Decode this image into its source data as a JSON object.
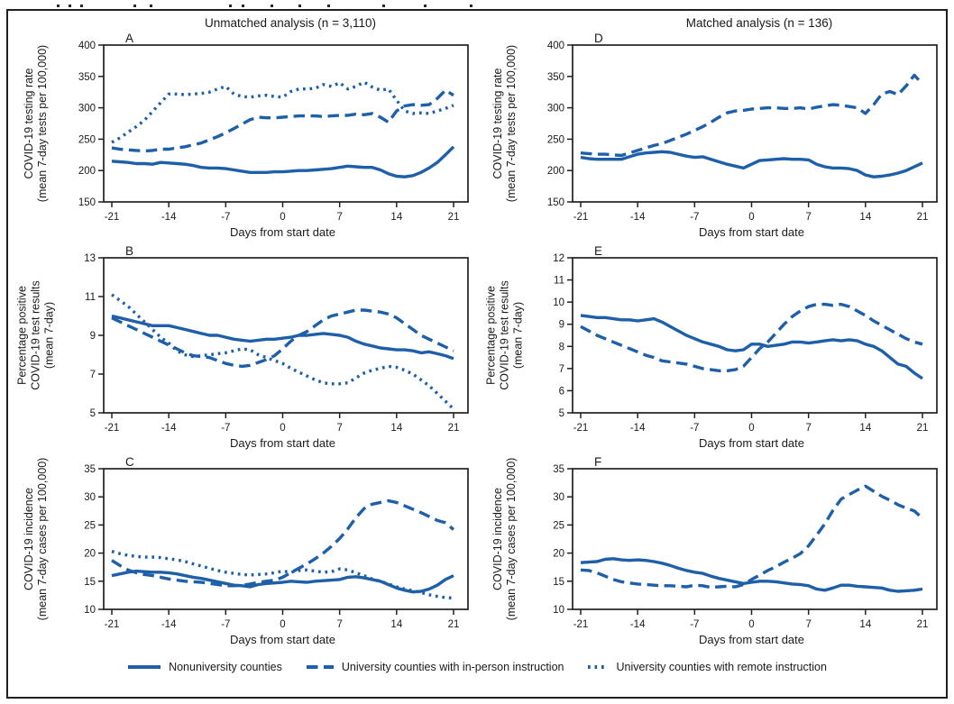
{
  "figure": {
    "column_headers": [
      "Unmatched analysis (n = 3,110)",
      "Matched analysis (n = 136)"
    ],
    "x_axis": {
      "label": "Days from start date",
      "ticks": [
        -21,
        -14,
        -7,
        0,
        7,
        14,
        21
      ],
      "range": [
        -21,
        21
      ]
    },
    "legend": [
      {
        "style": "solid",
        "label": "Nonuniversity counties"
      },
      {
        "style": "dashed",
        "label": "University counties with in-person instruction"
      },
      {
        "style": "dotted",
        "label": "University counties with remote instruction"
      }
    ],
    "colors": {
      "line": "#1E5FA9",
      "axis": "#231F20",
      "text": "#1a1a1a"
    }
  },
  "chart_data": [
    {
      "type": "line",
      "panel": "A",
      "column": 0,
      "ylabel_lines": [
        "COVID-19 testing rate",
        "(mean 7-day tests per 100,000)"
      ],
      "xlabel": "Days from start date",
      "ylim": [
        150,
        400
      ],
      "yticks": [
        150,
        200,
        250,
        300,
        350,
        400
      ],
      "x_start": -21,
      "x_step": 1,
      "grid": false,
      "legend_position": "bottom",
      "series": [
        {
          "name": "Nonuniversity counties",
          "style": "solid",
          "values": [
            215,
            214,
            213,
            211,
            211,
            210,
            213,
            212,
            211,
            210,
            208,
            205,
            204,
            204,
            203,
            201,
            199,
            197,
            197,
            197,
            198,
            198,
            199,
            200,
            200,
            201,
            202,
            203,
            205,
            207,
            206,
            205,
            205,
            201,
            195,
            191,
            190,
            192,
            197,
            204,
            213,
            225,
            238
          ]
        },
        {
          "name": "University counties with in-person instruction",
          "style": "dashed",
          "values": [
            236,
            234,
            233,
            232,
            231,
            232,
            234,
            234,
            236,
            238,
            241,
            244,
            249,
            254,
            260,
            267,
            274,
            281,
            285,
            284,
            284,
            285,
            286,
            287,
            287,
            287,
            286,
            287,
            288,
            288,
            290,
            289,
            291,
            285,
            277,
            295,
            303,
            305,
            304,
            305,
            315,
            328,
            320
          ]
        },
        {
          "name": "University counties with remote instruction",
          "style": "dotted",
          "values": [
            245,
            252,
            261,
            270,
            280,
            294,
            308,
            322,
            322,
            321,
            322,
            323,
            325,
            330,
            334,
            322,
            318,
            317,
            319,
            320,
            318,
            317,
            326,
            330,
            330,
            331,
            337,
            334,
            340,
            330,
            334,
            341,
            333,
            328,
            330,
            312,
            295,
            291,
            292,
            291,
            295,
            299,
            304
          ]
        }
      ]
    },
    {
      "type": "line",
      "panel": "D",
      "column": 1,
      "ylabel_lines": [
        "COVID-19 testing rate",
        "(mean 7-day tests per 100,000)"
      ],
      "xlabel": "Days from start date",
      "ylim": [
        150,
        400
      ],
      "yticks": [
        150,
        200,
        250,
        300,
        350,
        400
      ],
      "x_start": -21,
      "x_step": 1,
      "grid": false,
      "legend_position": "bottom",
      "series": [
        {
          "name": "Nonuniversity counties",
          "style": "solid",
          "values": [
            221,
            219,
            218,
            218,
            218,
            218,
            222,
            226,
            228,
            229,
            230,
            229,
            226,
            223,
            221,
            222,
            218,
            214,
            210,
            207,
            204,
            210,
            216,
            217,
            218,
            219,
            218,
            218,
            217,
            210,
            206,
            204,
            204,
            203,
            200,
            193,
            190,
            191,
            193,
            196,
            200,
            206,
            212
          ]
        },
        {
          "name": "University counties with in-person instruction",
          "style": "dashed",
          "values": [
            228,
            227,
            226,
            226,
            225,
            224,
            228,
            232,
            236,
            240,
            243,
            248,
            253,
            258,
            264,
            270,
            277,
            285,
            292,
            295,
            296,
            298,
            299,
            300,
            300,
            299,
            299,
            300,
            298,
            301,
            303,
            305,
            304,
            302,
            300,
            291,
            305,
            322,
            326,
            321,
            335,
            352,
            338
          ]
        }
      ]
    },
    {
      "type": "line",
      "panel": "B",
      "column": 0,
      "ylabel_lines": [
        "Percentage positive",
        "COVID-19 test results",
        "(mean 7-day)"
      ],
      "xlabel": "Days from start date",
      "ylim": [
        5,
        13
      ],
      "yticks": [
        5,
        7,
        9,
        11,
        13
      ],
      "x_start": -21,
      "x_step": 1,
      "grid": false,
      "legend_position": "bottom",
      "series": [
        {
          "name": "Nonuniversity counties",
          "style": "solid",
          "values": [
            10.0,
            9.9,
            9.8,
            9.7,
            9.6,
            9.5,
            9.5,
            9.5,
            9.4,
            9.3,
            9.2,
            9.1,
            9.0,
            9.0,
            8.9,
            8.8,
            8.75,
            8.7,
            8.75,
            8.8,
            8.8,
            8.85,
            8.9,
            9.0,
            9.0,
            9.05,
            9.1,
            9.05,
            9.0,
            8.9,
            8.7,
            8.55,
            8.45,
            8.35,
            8.3,
            8.25,
            8.25,
            8.2,
            8.1,
            8.15,
            8.05,
            7.95,
            7.8
          ]
        },
        {
          "name": "University counties with in-person instruction",
          "style": "dashed",
          "values": [
            9.9,
            9.7,
            9.5,
            9.3,
            9.1,
            8.9,
            8.7,
            8.5,
            8.3,
            8.1,
            7.95,
            7.9,
            7.85,
            7.7,
            7.55,
            7.45,
            7.4,
            7.45,
            7.6,
            7.75,
            7.95,
            8.3,
            8.7,
            9.0,
            9.2,
            9.5,
            9.8,
            10.0,
            10.1,
            10.2,
            10.3,
            10.3,
            10.25,
            10.2,
            10.1,
            9.9,
            9.6,
            9.3,
            9.0,
            8.8,
            8.6,
            8.4,
            8.2
          ]
        },
        {
          "name": "University counties with remote instruction",
          "style": "dotted",
          "values": [
            11.1,
            10.8,
            10.5,
            10.1,
            9.7,
            9.3,
            8.9,
            8.6,
            8.2,
            8.0,
            7.9,
            7.95,
            8.0,
            8.05,
            8.1,
            8.2,
            8.3,
            8.25,
            8.0,
            7.85,
            7.7,
            7.55,
            7.3,
            7.1,
            6.9,
            6.7,
            6.55,
            6.5,
            6.5,
            6.55,
            6.8,
            7.05,
            7.2,
            7.3,
            7.4,
            7.35,
            7.2,
            7.0,
            6.7,
            6.4,
            6.0,
            5.6,
            5.2
          ]
        }
      ]
    },
    {
      "type": "line",
      "panel": "E",
      "column": 1,
      "ylabel_lines": [
        "Percentage positive",
        "COVID-19 test results",
        "(mean 7-day)"
      ],
      "xlabel": "Days from start date",
      "ylim": [
        5,
        12
      ],
      "yticks": [
        5,
        6,
        7,
        8,
        9,
        10,
        11,
        12
      ],
      "x_start": -21,
      "x_step": 1,
      "grid": false,
      "legend_position": "bottom",
      "series": [
        {
          "name": "Nonuniversity counties",
          "style": "solid",
          "values": [
            9.4,
            9.35,
            9.3,
            9.3,
            9.25,
            9.2,
            9.2,
            9.15,
            9.2,
            9.25,
            9.1,
            8.9,
            8.7,
            8.5,
            8.35,
            8.2,
            8.1,
            8.0,
            7.85,
            7.8,
            7.85,
            8.1,
            8.1,
            8.0,
            8.05,
            8.1,
            8.2,
            8.2,
            8.15,
            8.2,
            8.25,
            8.3,
            8.25,
            8.3,
            8.25,
            8.1,
            8.0,
            7.8,
            7.5,
            7.2,
            7.1,
            6.8,
            6.55
          ]
        },
        {
          "name": "University counties with in-person instruction",
          "style": "dashed",
          "values": [
            8.9,
            8.7,
            8.5,
            8.35,
            8.2,
            8.05,
            7.9,
            7.75,
            7.6,
            7.5,
            7.35,
            7.3,
            7.25,
            7.2,
            7.1,
            7.0,
            6.95,
            6.9,
            6.9,
            6.95,
            7.1,
            7.5,
            7.9,
            8.2,
            8.6,
            9.0,
            9.35,
            9.6,
            9.8,
            9.9,
            9.9,
            9.85,
            9.9,
            9.8,
            9.6,
            9.4,
            9.15,
            8.95,
            8.75,
            8.55,
            8.35,
            8.2,
            8.1
          ]
        }
      ]
    },
    {
      "type": "line",
      "panel": "C",
      "column": 0,
      "ylabel_lines": [
        "COVID-19 incidence",
        "(mean 7-day cases per 100,000)"
      ],
      "xlabel": "Days from start date",
      "ylim": [
        10,
        35
      ],
      "yticks": [
        10,
        15,
        20,
        25,
        30,
        35
      ],
      "x_start": -21,
      "x_step": 1,
      "grid": false,
      "legend_position": "bottom",
      "series": [
        {
          "name": "Nonuniversity counties",
          "style": "solid",
          "values": [
            16.0,
            16.3,
            16.6,
            16.8,
            16.7,
            16.6,
            16.6,
            16.5,
            16.3,
            16.0,
            15.7,
            15.5,
            15.2,
            14.9,
            14.6,
            14.3,
            14.2,
            14.0,
            14.4,
            14.6,
            14.7,
            14.8,
            15.0,
            14.9,
            14.8,
            15.0,
            15.1,
            15.2,
            15.3,
            15.7,
            15.8,
            15.6,
            15.3,
            15.0,
            14.4,
            13.8,
            13.4,
            13.1,
            13.2,
            13.6,
            14.3,
            15.3,
            16.0
          ]
        },
        {
          "name": "University counties with in-person instruction",
          "style": "dashed",
          "values": [
            18.7,
            17.8,
            17.0,
            16.5,
            16.2,
            16.0,
            15.7,
            15.4,
            15.2,
            15.0,
            14.9,
            14.8,
            14.6,
            14.4,
            14.2,
            14.2,
            14.3,
            14.5,
            14.8,
            15.0,
            15.2,
            15.7,
            16.5,
            17.3,
            18.1,
            19.0,
            20.0,
            21.2,
            22.6,
            24.3,
            26.3,
            27.9,
            28.7,
            29.0,
            29.3,
            29.0,
            28.4,
            27.8,
            27.2,
            26.5,
            25.8,
            25.4,
            24.2
          ]
        },
        {
          "name": "University counties with remote instruction",
          "style": "dotted",
          "values": [
            20.3,
            19.9,
            19.6,
            19.4,
            19.3,
            19.3,
            19.2,
            19.0,
            18.8,
            18.5,
            18.1,
            17.7,
            17.3,
            16.9,
            16.6,
            16.4,
            16.2,
            16.1,
            16.2,
            16.3,
            16.5,
            16.8,
            16.6,
            16.9,
            17.0,
            16.8,
            16.6,
            16.7,
            17.2,
            17.0,
            16.5,
            16.0,
            15.4,
            15.0,
            14.5,
            14.0,
            13.6,
            13.3,
            13.0,
            12.6,
            12.3,
            12.1,
            12.0
          ]
        }
      ]
    },
    {
      "type": "line",
      "panel": "F",
      "column": 1,
      "ylabel_lines": [
        "COVID-19 incidence",
        "(mean 7-day cases per 100,000)"
      ],
      "xlabel": "Days from start date",
      "ylim": [
        10,
        35
      ],
      "yticks": [
        10,
        15,
        20,
        25,
        30,
        35
      ],
      "x_start": -21,
      "x_step": 1,
      "grid": false,
      "legend_position": "bottom",
      "series": [
        {
          "name": "Nonuniversity counties",
          "style": "solid",
          "values": [
            18.3,
            18.4,
            18.5,
            18.9,
            19.0,
            18.8,
            18.7,
            18.8,
            18.7,
            18.5,
            18.2,
            17.8,
            17.3,
            16.9,
            16.6,
            16.4,
            15.9,
            15.5,
            15.2,
            14.9,
            14.6,
            14.8,
            15.0,
            15.0,
            14.9,
            14.7,
            14.5,
            14.4,
            14.2,
            13.6,
            13.4,
            13.8,
            14.3,
            14.3,
            14.1,
            14.0,
            13.9,
            13.8,
            13.4,
            13.2,
            13.3,
            13.4,
            13.6
          ]
        },
        {
          "name": "University counties with in-person instruction",
          "style": "dashed",
          "values": [
            17.0,
            16.9,
            16.5,
            15.9,
            15.3,
            14.9,
            14.7,
            14.5,
            14.4,
            14.3,
            14.2,
            14.2,
            14.1,
            14.0,
            14.3,
            14.2,
            13.9,
            14.0,
            14.1,
            14.0,
            14.4,
            15.3,
            16.1,
            16.9,
            17.6,
            18.4,
            19.1,
            19.9,
            21.3,
            23.2,
            25.2,
            27.6,
            29.6,
            30.4,
            31.2,
            31.9,
            31.0,
            30.1,
            29.4,
            28.6,
            28.0,
            27.5,
            26.2
          ]
        }
      ]
    }
  ]
}
